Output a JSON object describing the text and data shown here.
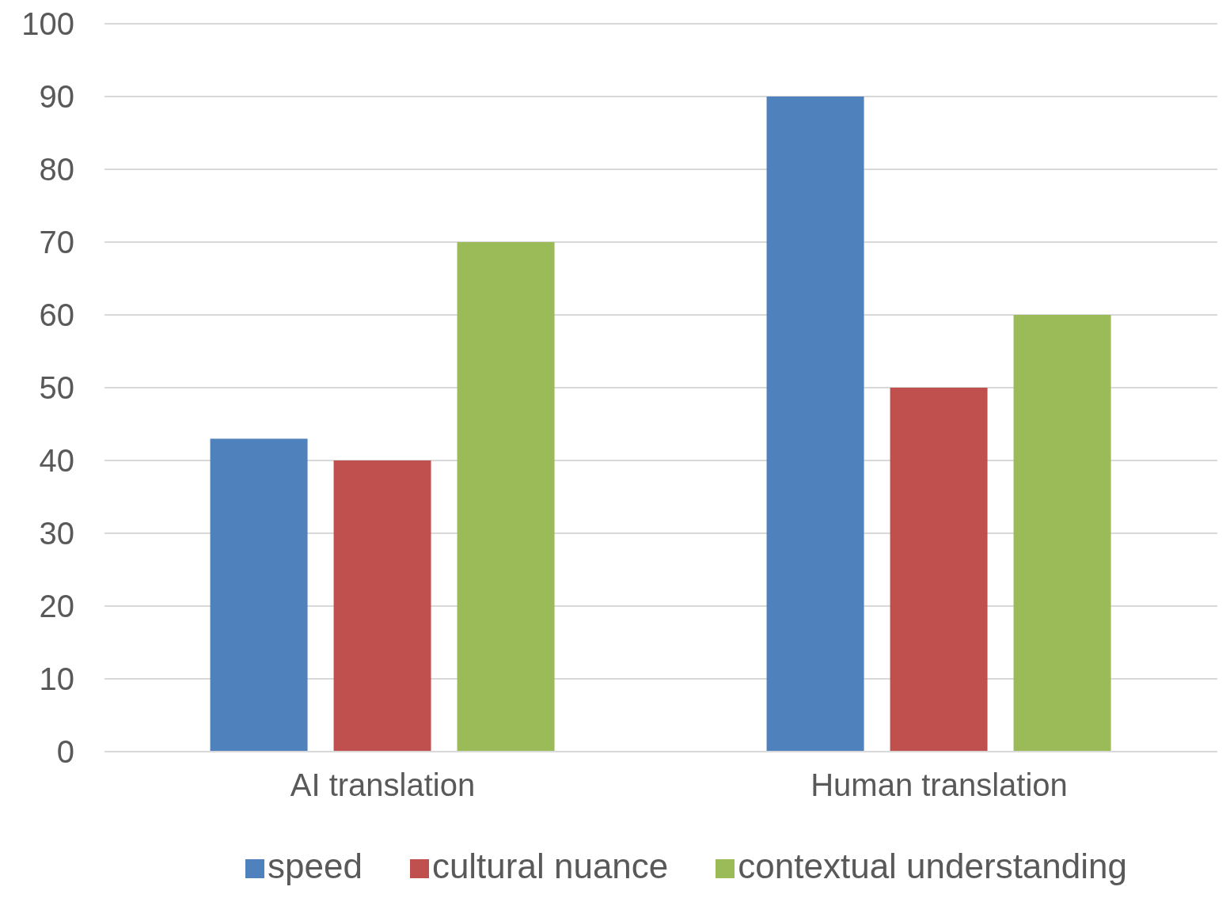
{
  "chart_data": {
    "type": "bar",
    "categories": [
      "AI translation",
      "Human translation"
    ],
    "series": [
      {
        "name": "speed",
        "color": "#4f81bd",
        "values": [
          43,
          90
        ]
      },
      {
        "name": "cultural nuance",
        "color": "#c0504d",
        "values": [
          40,
          50
        ]
      },
      {
        "name": "contextual understanding",
        "color": "#9bbb59",
        "values": [
          70,
          60
        ]
      }
    ],
    "ylim": [
      0,
      100
    ],
    "yticks": [
      0,
      10,
      20,
      30,
      40,
      50,
      60,
      70,
      80,
      90,
      100
    ],
    "grid": "y",
    "legend": "bottom"
  }
}
